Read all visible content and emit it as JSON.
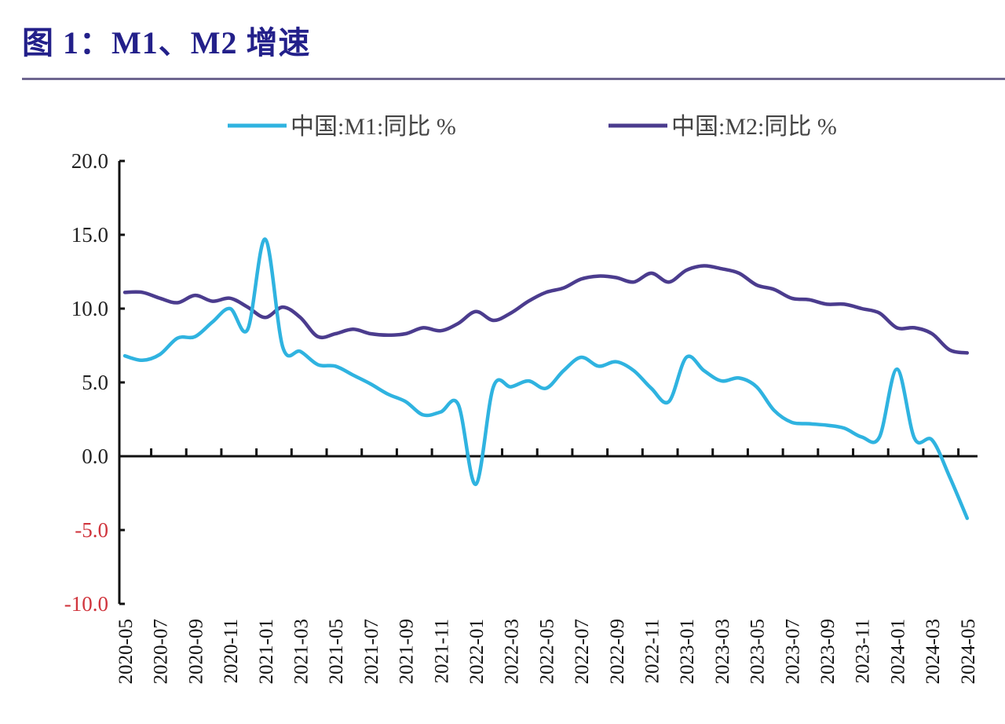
{
  "title": "图 1：M1、M2 增速",
  "chart_data": {
    "type": "line",
    "title": "图 1：M1、M2 增速",
    "xlabel": "",
    "ylabel": "",
    "ylim": [
      -10,
      20
    ],
    "yticks": [
      {
        "value": 20,
        "label": "20.0",
        "color": "#222222"
      },
      {
        "value": 15,
        "label": "15.0",
        "color": "#222222"
      },
      {
        "value": 10,
        "label": "10.0",
        "color": "#222222"
      },
      {
        "value": 5,
        "label": "5.0",
        "color": "#222222"
      },
      {
        "value": 0,
        "label": "0.0",
        "color": "#222222"
      },
      {
        "value": -5,
        "label": "-5.0",
        "color": "#d0343c"
      },
      {
        "value": -10,
        "label": "-10.0",
        "color": "#d0343c"
      }
    ],
    "x": [
      "2020-05",
      "2020-06",
      "2020-07",
      "2020-08",
      "2020-09",
      "2020-10",
      "2020-11",
      "2020-12",
      "2021-01",
      "2021-02",
      "2021-03",
      "2021-04",
      "2021-05",
      "2021-06",
      "2021-07",
      "2021-08",
      "2021-09",
      "2021-10",
      "2021-11",
      "2021-12",
      "2022-01",
      "2022-02",
      "2022-03",
      "2022-04",
      "2022-05",
      "2022-06",
      "2022-07",
      "2022-08",
      "2022-09",
      "2022-10",
      "2022-11",
      "2022-12",
      "2023-01",
      "2023-02",
      "2023-03",
      "2023-04",
      "2023-05",
      "2023-06",
      "2023-07",
      "2023-08",
      "2023-09",
      "2023-10",
      "2023-11",
      "2023-12",
      "2024-01",
      "2024-02",
      "2024-03",
      "2024-04",
      "2024-05"
    ],
    "xtick_labels": [
      "2020-05",
      "2020-07",
      "2020-09",
      "2020-11",
      "2021-01",
      "2021-03",
      "2021-05",
      "2021-07",
      "2021-09",
      "2021-11",
      "2022-01",
      "2022-03",
      "2022-05",
      "2022-07",
      "2022-09",
      "2022-11",
      "2023-01",
      "2023-03",
      "2023-05",
      "2023-07",
      "2023-09",
      "2023-11",
      "2024-01",
      "2024-03",
      "2024-05"
    ],
    "legend_position": "top",
    "grid": false,
    "series": [
      {
        "name": "中国:M1:同比 %",
        "color": "#2fb3e0",
        "values": [
          6.8,
          6.5,
          6.9,
          8.0,
          8.1,
          9.1,
          10.0,
          8.6,
          14.7,
          7.4,
          7.1,
          6.2,
          6.1,
          5.5,
          4.9,
          4.2,
          3.7,
          2.8,
          3.0,
          3.5,
          -1.9,
          4.7,
          4.7,
          5.1,
          4.6,
          5.8,
          6.7,
          6.1,
          6.4,
          5.8,
          4.6,
          3.7,
          6.7,
          5.8,
          5.1,
          5.3,
          4.7,
          3.1,
          2.3,
          2.2,
          2.1,
          1.9,
          1.3,
          1.3,
          5.9,
          1.2,
          1.1,
          -1.4,
          -4.2
        ]
      },
      {
        "name": "中国:M2:同比 %",
        "color": "#4b3c8e",
        "values": [
          11.1,
          11.1,
          10.7,
          10.4,
          10.9,
          10.5,
          10.7,
          10.1,
          9.4,
          10.1,
          9.4,
          8.1,
          8.3,
          8.6,
          8.3,
          8.2,
          8.3,
          8.7,
          8.5,
          9.0,
          9.8,
          9.2,
          9.7,
          10.5,
          11.1,
          11.4,
          12.0,
          12.2,
          12.1,
          11.8,
          12.4,
          11.8,
          12.6,
          12.9,
          12.7,
          12.4,
          11.6,
          11.3,
          10.7,
          10.6,
          10.3,
          10.3,
          10.0,
          9.7,
          8.7,
          8.7,
          8.3,
          7.2,
          7.0
        ]
      }
    ]
  }
}
